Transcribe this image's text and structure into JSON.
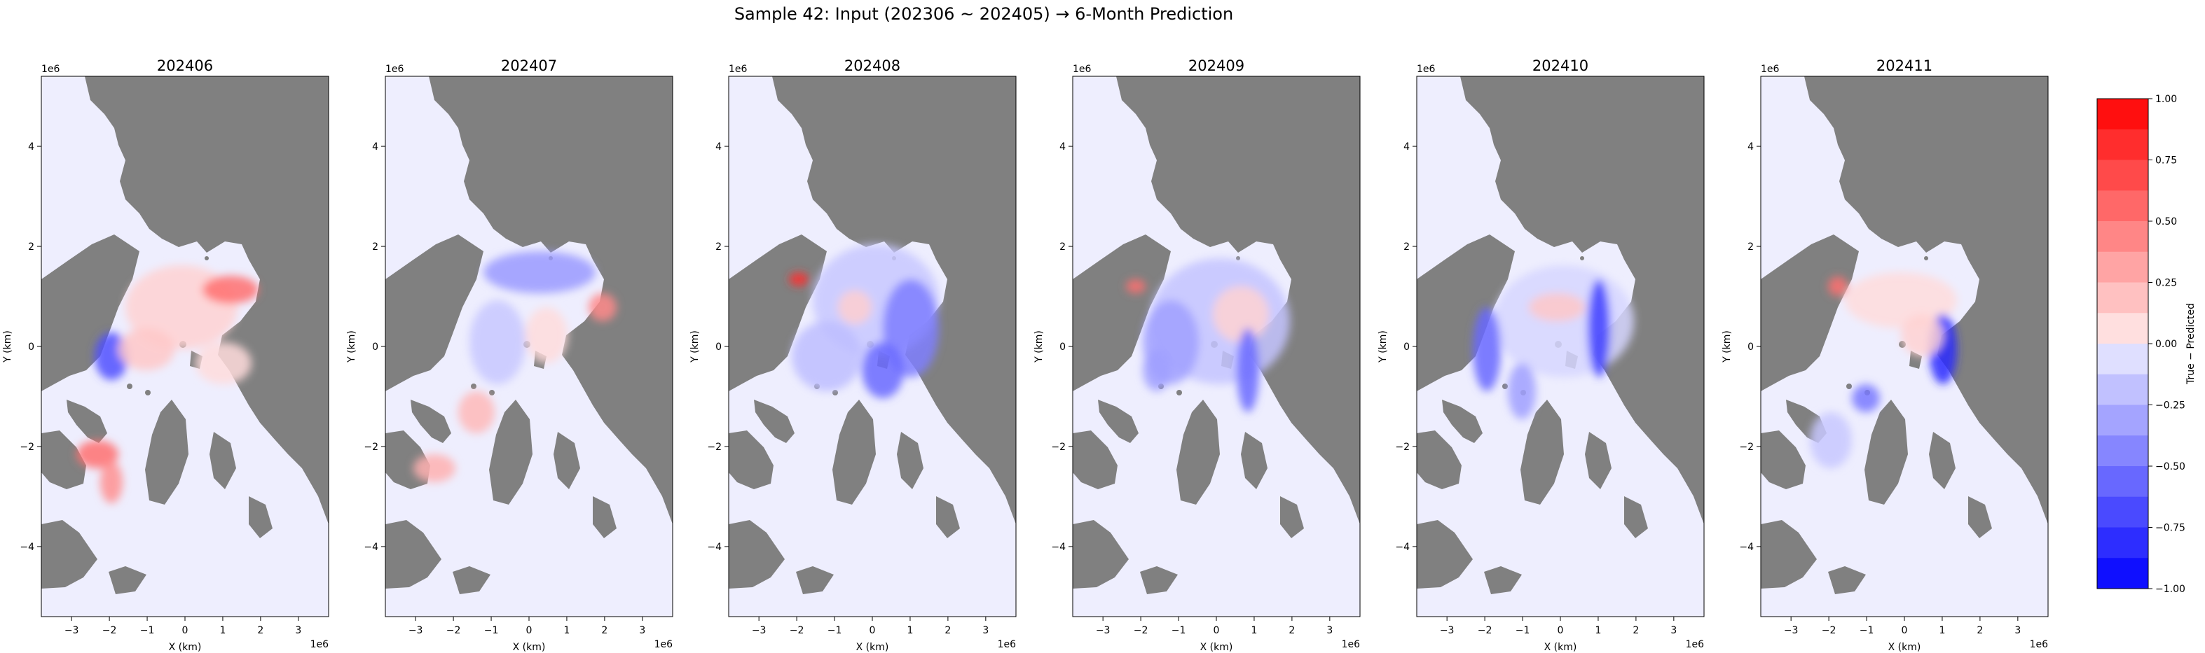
{
  "figure": {
    "title": "Sample 42: Input (202306 ~ 202405) → 6-Month Prediction"
  },
  "colors": {
    "land": "#808080",
    "neutral": "#eeeefe",
    "positive": "#ff0000",
    "negative": "#0000ff"
  },
  "chart_data": [
    {
      "type": "heatmap",
      "title": "202406",
      "xlabel": "X (km)",
      "ylabel": "Y (km)",
      "xlim": [
        -3.8,
        3.8
      ],
      "ylim": [
        -5.4,
        5.4
      ],
      "x_ticks": [
        "−3",
        "−2",
        "−1",
        "0",
        "1",
        "2",
        "3"
      ],
      "y_ticks": [
        "−4",
        "−2",
        "0",
        "2",
        "4"
      ],
      "x_offset": "1e6",
      "y_offset": "1e6"
    },
    {
      "type": "heatmap",
      "title": "202407",
      "xlabel": "X (km)",
      "ylabel": "Y (km)",
      "xlim": [
        -3.8,
        3.8
      ],
      "ylim": [
        -5.4,
        5.4
      ],
      "x_ticks": [
        "−3",
        "−2",
        "−1",
        "0",
        "1",
        "2",
        "3"
      ],
      "y_ticks": [
        "−4",
        "−2",
        "0",
        "2",
        "4"
      ],
      "x_offset": "1e6",
      "y_offset": "1e6"
    },
    {
      "type": "heatmap",
      "title": "202408",
      "xlabel": "X (km)",
      "ylabel": "Y (km)",
      "xlim": [
        -3.8,
        3.8
      ],
      "ylim": [
        -5.4,
        5.4
      ],
      "x_ticks": [
        "−3",
        "−2",
        "−1",
        "0",
        "1",
        "2",
        "3"
      ],
      "y_ticks": [
        "−4",
        "−2",
        "0",
        "2",
        "4"
      ],
      "x_offset": "1e6",
      "y_offset": "1e6"
    },
    {
      "type": "heatmap",
      "title": "202409",
      "xlabel": "X (km)",
      "ylabel": "Y (km)",
      "xlim": [
        -3.8,
        3.8
      ],
      "ylim": [
        -5.4,
        5.4
      ],
      "x_ticks": [
        "−3",
        "−2",
        "−1",
        "0",
        "1",
        "2",
        "3"
      ],
      "y_ticks": [
        "−4",
        "−2",
        "0",
        "2",
        "4"
      ],
      "x_offset": "1e6",
      "y_offset": "1e6"
    },
    {
      "type": "heatmap",
      "title": "202410",
      "xlabel": "X (km)",
      "ylabel": "Y (km)",
      "xlim": [
        -3.8,
        3.8
      ],
      "ylim": [
        -5.4,
        5.4
      ],
      "x_ticks": [
        "−3",
        "−2",
        "−1",
        "0",
        "1",
        "2",
        "3"
      ],
      "y_ticks": [
        "−4",
        "−2",
        "0",
        "2",
        "4"
      ],
      "x_offset": "1e6",
      "y_offset": "1e6"
    },
    {
      "type": "heatmap",
      "title": "202411",
      "xlabel": "X (km)",
      "ylabel": "Y (km)",
      "xlim": [
        -3.8,
        3.8
      ],
      "ylim": [
        -5.4,
        5.4
      ],
      "x_ticks": [
        "−3",
        "−2",
        "−1",
        "0",
        "1",
        "2",
        "3"
      ],
      "y_ticks": [
        "−4",
        "−2",
        "0",
        "2",
        "4"
      ],
      "x_offset": "1e6",
      "y_offset": "1e6"
    }
  ],
  "colorbar": {
    "label": "True − Predicted",
    "range": [
      -1,
      1
    ],
    "ticks": [
      "1.00",
      "0.75",
      "0.50",
      "0.25",
      "0.00",
      "−0.25",
      "−0.50",
      "−0.75",
      "−1.00"
    ],
    "levels": 16
  }
}
